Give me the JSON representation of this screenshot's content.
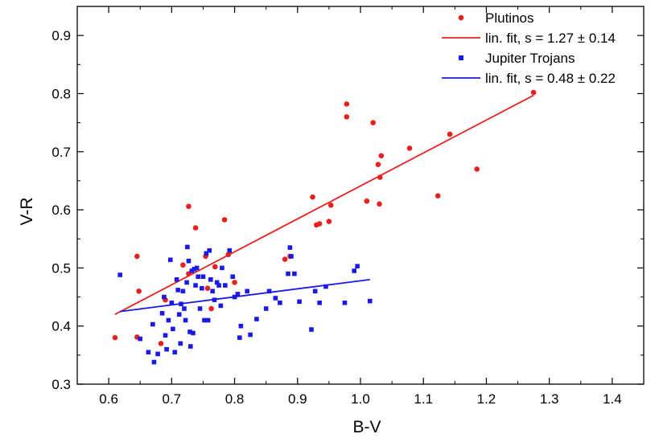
{
  "chart_data": {
    "type": "scatter",
    "title": "",
    "xlabel": "B-V",
    "ylabel": "V-R",
    "xlim": [
      0.55,
      1.45
    ],
    "ylim": [
      0.3,
      0.95
    ],
    "xticks": [
      0.6,
      0.7,
      0.8,
      0.9,
      1.0,
      1.1,
      1.2,
      1.3,
      1.4
    ],
    "xtick_labels": [
      "0.6",
      "0.7",
      "0.8",
      "0.9",
      "1.0",
      "1.1",
      "1.2",
      "1.3",
      "1.4"
    ],
    "yticks": [
      0.3,
      0.4,
      0.5,
      0.6,
      0.7,
      0.8,
      0.9
    ],
    "ytick_labels": [
      "0.3",
      "0.4",
      "0.5",
      "0.6",
      "0.7",
      "0.8",
      "0.9"
    ],
    "grid": false,
    "legend_position": "top-right",
    "legend": [
      {
        "label": "Plutinos",
        "kind": "marker",
        "marker": "circle",
        "color": "#e8211f"
      },
      {
        "label": "lin. fit, s = 1.27 ± 0.14",
        "kind": "line",
        "color": "#e8211f"
      },
      {
        "label": "Jupiter Trojans",
        "kind": "marker",
        "marker": "square",
        "color": "#1a1ae6"
      },
      {
        "label": "lin. fit, s = 0.48 ± 0.22",
        "kind": "line",
        "color": "#1a1ae6"
      }
    ],
    "series": [
      {
        "name": "Plutinos",
        "marker": "circle",
        "color": "#e8211f",
        "points": [
          [
            0.61,
            0.38
          ],
          [
            0.645,
            0.52
          ],
          [
            0.648,
            0.46
          ],
          [
            0.645,
            0.381
          ],
          [
            0.683,
            0.37
          ],
          [
            0.69,
            0.445
          ],
          [
            0.718,
            0.505
          ],
          [
            0.727,
            0.606
          ],
          [
            0.727,
            0.49
          ],
          [
            0.738,
            0.569
          ],
          [
            0.754,
            0.52
          ],
          [
            0.757,
            0.465
          ],
          [
            0.763,
            0.43
          ],
          [
            0.769,
            0.502
          ],
          [
            0.784,
            0.583
          ],
          [
            0.79,
            0.523
          ],
          [
            0.8,
            0.475
          ],
          [
            0.88,
            0.515
          ],
          [
            0.888,
            0.52
          ],
          [
            0.924,
            0.622
          ],
          [
            0.93,
            0.574
          ],
          [
            0.935,
            0.576
          ],
          [
            0.95,
            0.58
          ],
          [
            0.953,
            0.608
          ],
          [
            0.978,
            0.782
          ],
          [
            0.978,
            0.76
          ],
          [
            1.01,
            0.615
          ],
          [
            1.02,
            0.75
          ],
          [
            1.028,
            0.678
          ],
          [
            1.03,
            0.61
          ],
          [
            1.031,
            0.656
          ],
          [
            1.033,
            0.693
          ],
          [
            1.078,
            0.706
          ],
          [
            1.123,
            0.624
          ],
          [
            1.142,
            0.73
          ],
          [
            1.185,
            0.67
          ],
          [
            1.275,
            0.802
          ]
        ]
      },
      {
        "name": "lin. fit, s = 1.27 ± 0.14",
        "kind": "line",
        "color": "#e8211f",
        "points": [
          [
            0.61,
            0.42
          ],
          [
            1.275,
            0.797
          ]
        ]
      },
      {
        "name": "Jupiter Trojans",
        "marker": "square",
        "color": "#1a1ae6",
        "points": [
          [
            0.618,
            0.488
          ],
          [
            0.65,
            0.378
          ],
          [
            0.663,
            0.355
          ],
          [
            0.67,
            0.403
          ],
          [
            0.672,
            0.338
          ],
          [
            0.678,
            0.352
          ],
          [
            0.685,
            0.422
          ],
          [
            0.688,
            0.45
          ],
          [
            0.69,
            0.384
          ],
          [
            0.692,
            0.36
          ],
          [
            0.695,
            0.41
          ],
          [
            0.698,
            0.514
          ],
          [
            0.7,
            0.44
          ],
          [
            0.702,
            0.395
          ],
          [
            0.705,
            0.355
          ],
          [
            0.708,
            0.48
          ],
          [
            0.71,
            0.462
          ],
          [
            0.712,
            0.42
          ],
          [
            0.714,
            0.37
          ],
          [
            0.715,
            0.438
          ],
          [
            0.718,
            0.46
          ],
          [
            0.72,
            0.43
          ],
          [
            0.722,
            0.41
          ],
          [
            0.724,
            0.475
          ],
          [
            0.725,
            0.536
          ],
          [
            0.727,
            0.512
          ],
          [
            0.729,
            0.39
          ],
          [
            0.73,
            0.365
          ],
          [
            0.732,
            0.495
          ],
          [
            0.734,
            0.388
          ],
          [
            0.736,
            0.498
          ],
          [
            0.738,
            0.47
          ],
          [
            0.74,
            0.5
          ],
          [
            0.742,
            0.485
          ],
          [
            0.745,
            0.43
          ],
          [
            0.748,
            0.465
          ],
          [
            0.75,
            0.485
          ],
          [
            0.752,
            0.41
          ],
          [
            0.755,
            0.525
          ],
          [
            0.758,
            0.41
          ],
          [
            0.76,
            0.53
          ],
          [
            0.762,
            0.48
          ],
          [
            0.765,
            0.46
          ],
          [
            0.768,
            0.445
          ],
          [
            0.772,
            0.475
          ],
          [
            0.775,
            0.47
          ],
          [
            0.778,
            0.435
          ],
          [
            0.78,
            0.5
          ],
          [
            0.785,
            0.47
          ],
          [
            0.792,
            0.53
          ],
          [
            0.797,
            0.485
          ],
          [
            0.8,
            0.45
          ],
          [
            0.805,
            0.455
          ],
          [
            0.808,
            0.38
          ],
          [
            0.81,
            0.4
          ],
          [
            0.82,
            0.46
          ],
          [
            0.825,
            0.385
          ],
          [
            0.835,
            0.412
          ],
          [
            0.85,
            0.43
          ],
          [
            0.855,
            0.46
          ],
          [
            0.865,
            0.448
          ],
          [
            0.872,
            0.44
          ],
          [
            0.885,
            0.49
          ],
          [
            0.888,
            0.535
          ],
          [
            0.89,
            0.52
          ],
          [
            0.895,
            0.49
          ],
          [
            0.903,
            0.442
          ],
          [
            0.922,
            0.394
          ],
          [
            0.928,
            0.46
          ],
          [
            0.935,
            0.44
          ],
          [
            0.945,
            0.468
          ],
          [
            0.975,
            0.44
          ],
          [
            0.99,
            0.495
          ],
          [
            0.995,
            0.503
          ],
          [
            1.015,
            0.443
          ]
        ]
      },
      {
        "name": "lin. fit, s = 0.48 ± 0.22",
        "kind": "line",
        "color": "#1a1ae6",
        "points": [
          [
            0.618,
            0.425
          ],
          [
            1.015,
            0.48
          ]
        ]
      }
    ]
  }
}
